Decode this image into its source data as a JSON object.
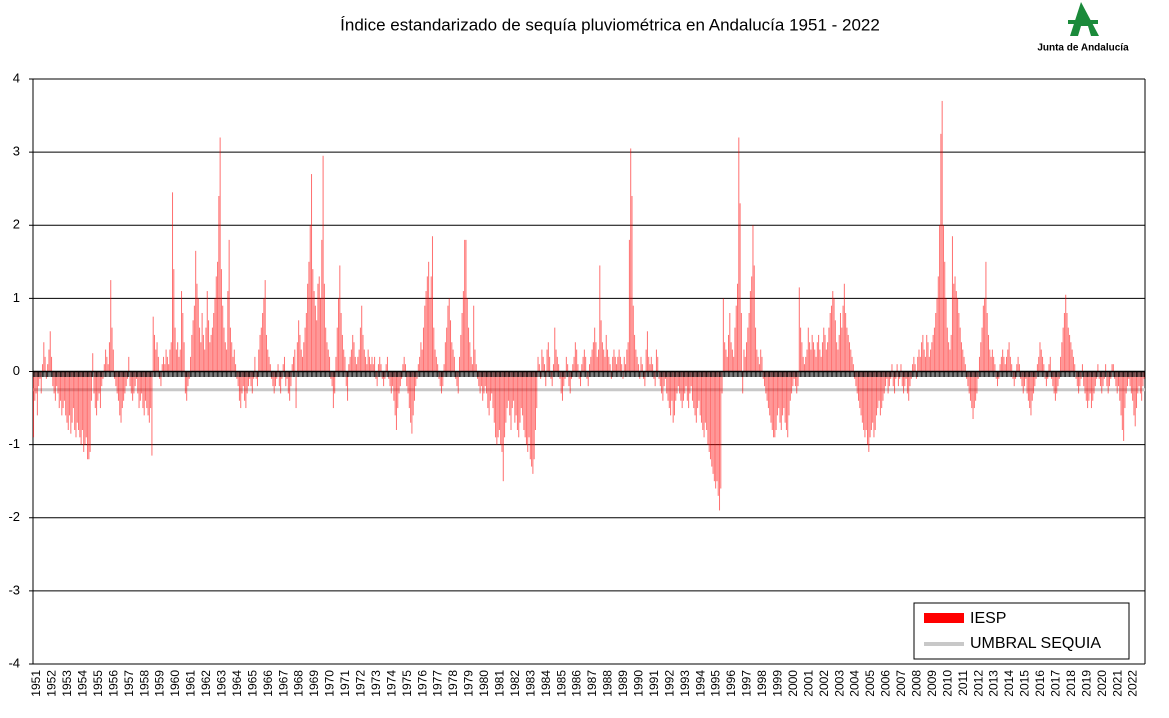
{
  "chart_data": {
    "type": "bar",
    "title": "Índice estandarizado de sequía pluviométrica en Andalucía 1951 - 2022",
    "logo_text": "Junta de Andalucía",
    "categories": [
      "1951",
      "1952",
      "1953",
      "1954",
      "1955",
      "1956",
      "1957",
      "1958",
      "1959",
      "1960",
      "1961",
      "1962",
      "1963",
      "1964",
      "1965",
      "1966",
      "1967",
      "1968",
      "1969",
      "1970",
      "1971",
      "1972",
      "1973",
      "1974",
      "1975",
      "1976",
      "1977",
      "1978",
      "1979",
      "1980",
      "1981",
      "1982",
      "1983",
      "1984",
      "1985",
      "1986",
      "1987",
      "1988",
      "1989",
      "1990",
      "1991",
      "1992",
      "1993",
      "1994",
      "1995",
      "1996",
      "1997",
      "1998",
      "1999",
      "2000",
      "2001",
      "2002",
      "2003",
      "2004",
      "2005",
      "2006",
      "2007",
      "2008",
      "2009",
      "2010",
      "2011",
      "2012",
      "2013",
      "2014",
      "2015",
      "2016",
      "2017",
      "2018",
      "2019",
      "2020",
      "2021",
      "2022"
    ],
    "series": [
      {
        "name": "IESP",
        "color": "#ff0000",
        "values": [
          [
            -0.9,
            -0.4,
            -0.3,
            -0.6,
            -0.2,
            -0.1,
            -0.3,
            0.1,
            0.4,
            0.2,
            -0.1,
            0.1
          ],
          [
            0.3,
            0.55,
            0.2,
            -0.2,
            -0.3,
            -0.4,
            -0.2,
            -0.3,
            -0.5,
            -0.4,
            -0.6,
            -0.5
          ],
          [
            -0.4,
            -0.6,
            -0.7,
            -0.8,
            -0.6,
            -0.85,
            -0.7,
            -0.5,
            -0.8,
            -0.9,
            -0.7,
            -0.8
          ],
          [
            -0.9,
            -1.0,
            -0.8,
            -1.1,
            -1.0,
            -0.9,
            -1.2,
            -1.2,
            -1.1,
            -0.4,
            0.25,
            -0.3
          ],
          [
            -0.5,
            -0.6,
            -0.4,
            -0.3,
            -0.5,
            -0.2,
            -0.1,
            0.1,
            0.3,
            0.2,
            0.1,
            0.4
          ],
          [
            1.25,
            0.6,
            0.3,
            -0.1,
            -0.2,
            -0.3,
            -0.4,
            -0.6,
            -0.7,
            -0.5,
            -0.4,
            -0.3
          ],
          [
            -0.2,
            -0.1,
            0.2,
            -0.2,
            -0.3,
            -0.4,
            -0.3,
            -0.2,
            -0.1,
            -0.3,
            -0.5,
            -0.4
          ],
          [
            -0.3,
            -0.5,
            -0.6,
            -0.4,
            -0.5,
            -0.6,
            -0.7,
            -0.5,
            -1.15,
            0.75,
            0.5,
            0.3
          ],
          [
            0.4,
            0.2,
            -0.1,
            -0.2,
            0.1,
            0.2,
            0.1,
            0.3,
            0.2,
            0.1,
            0.3,
            0.4
          ],
          [
            2.45,
            1.4,
            0.6,
            0.3,
            0.4,
            0.2,
            0.3,
            1.1,
            0.8,
            0.4,
            -0.3,
            -0.4
          ],
          [
            -0.2,
            -0.1,
            0.2,
            0.5,
            0.7,
            0.9,
            1.65,
            1.2,
            1.0,
            0.6,
            0.4,
            0.8
          ],
          [
            0.5,
            0.3,
            0.6,
            1.1,
            0.7,
            0.4,
            0.5,
            0.6,
            0.8,
            1.0,
            1.3,
            1.5
          ],
          [
            2.4,
            3.2,
            1.4,
            0.9,
            0.6,
            0.4,
            0.3,
            1.1,
            1.8,
            0.6,
            0.4,
            0.2
          ],
          [
            0.3,
            0.1,
            -0.1,
            -0.2,
            -0.4,
            -0.5,
            -0.3,
            -0.2,
            -0.4,
            -0.5,
            -0.3,
            -0.2
          ],
          [
            -0.1,
            -0.2,
            -0.3,
            -0.1,
            0.2,
            -0.1,
            -0.2,
            0.3,
            0.5,
            0.6,
            0.8,
            1.0
          ],
          [
            1.25,
            0.5,
            0.3,
            0.2,
            0.1,
            -0.1,
            -0.2,
            -0.3,
            -0.2,
            -0.1,
            0.1,
            -0.2
          ],
          [
            -0.3,
            -0.1,
            0.1,
            0.2,
            -0.2,
            -0.1,
            -0.3,
            -0.4,
            -0.2,
            0.1,
            0.2,
            0.3
          ],
          [
            -0.5,
            0.4,
            0.7,
            0.5,
            0.3,
            0.2,
            0.4,
            0.6,
            0.8,
            1.2,
            1.5,
            2.0
          ],
          [
            2.7,
            1.4,
            1.1,
            0.9,
            0.7,
            1.2,
            1.3,
            1.0,
            1.8,
            2.95,
            1.2,
            0.6
          ],
          [
            0.4,
            0.3,
            0.2,
            -0.1,
            -0.2,
            -0.5,
            -0.3,
            0.2,
            0.6,
            1.0,
            1.45,
            0.8
          ],
          [
            0.5,
            0.3,
            0.2,
            -0.2,
            -0.4,
            0.1,
            0.2,
            0.3,
            0.5,
            0.4,
            0.2,
            0.1
          ],
          [
            0.2,
            0.3,
            0.6,
            0.9,
            0.5,
            0.3,
            0.2,
            0.1,
            0.3,
            0.2,
            0.1,
            0.2
          ],
          [
            0.1,
            0.2,
            -0.1,
            -0.2,
            0.1,
            0.2,
            0.1,
            -0.1,
            -0.2,
            -0.1,
            0.1,
            0.2
          ],
          [
            -0.1,
            -0.2,
            -0.3,
            -0.2,
            -0.4,
            -0.6,
            -0.8,
            -0.5,
            -0.3,
            -0.2,
            -0.1,
            0.1
          ],
          [
            0.2,
            0.1,
            -0.2,
            -0.3,
            -0.5,
            -0.7,
            -0.85,
            -0.6,
            -0.4,
            -0.2,
            -0.1,
            0.1
          ],
          [
            0.2,
            0.4,
            0.3,
            0.6,
            0.9,
            1.1,
            1.3,
            1.5,
            1.0,
            1.3,
            1.85,
            0.6
          ],
          [
            0.3,
            0.2,
            0.1,
            -0.1,
            -0.2,
            -0.3,
            -0.2,
            0.1,
            0.4,
            0.6,
            0.9,
            1.0
          ],
          [
            0.7,
            0.4,
            0.3,
            0.2,
            -0.1,
            -0.2,
            -0.3,
            0.2,
            0.5,
            0.8,
            1.1,
            1.8
          ],
          [
            1.8,
            1.0,
            0.6,
            0.4,
            0.2,
            0.1,
            0.9,
            0.3,
            0.1,
            -0.1,
            -0.2,
            -0.3
          ],
          [
            -0.2,
            -0.4,
            -0.3,
            -0.2,
            -0.3,
            -0.5,
            -0.6,
            -0.4,
            -0.3,
            -0.5,
            -0.7,
            -0.9
          ],
          [
            -1.0,
            -0.9,
            -0.8,
            -1.0,
            -1.1,
            -1.5,
            -0.9,
            -0.7,
            -0.5,
            -0.4,
            -0.6,
            -0.8
          ],
          [
            -0.5,
            -0.4,
            -0.7,
            -0.6,
            -0.8,
            -0.9,
            -0.7,
            -0.5,
            -0.6,
            -0.8,
            -0.9,
            -1.0
          ],
          [
            -1.1,
            -0.9,
            -1.2,
            -1.3,
            -1.4,
            -1.2,
            -0.8,
            -0.5,
            0.2,
            0.1,
            -0.1,
            0.3
          ],
          [
            0.2,
            0.1,
            -0.2,
            0.3,
            0.4,
            0.2,
            -0.1,
            -0.2,
            0.1,
            0.6,
            0.3,
            0.2
          ],
          [
            0.1,
            -0.1,
            -0.3,
            -0.4,
            -0.2,
            -0.1,
            0.2,
            0.1,
            -0.2,
            -0.3,
            -0.1,
            0.1
          ],
          [
            0.2,
            0.4,
            0.3,
            0.1,
            -0.1,
            -0.2,
            0.1,
            0.2,
            0.3,
            0.2,
            -0.1,
            -0.2
          ],
          [
            0.1,
            0.2,
            0.3,
            0.4,
            0.6,
            0.4,
            0.2,
            0.3,
            1.45,
            0.7,
            0.4,
            0.3
          ],
          [
            0.2,
            0.5,
            0.3,
            0.2,
            0.1,
            -0.1,
            0.2,
            0.3,
            0.2,
            0.1,
            0.2,
            0.3
          ],
          [
            0.2,
            0.1,
            -0.1,
            0.2,
            0.1,
            0.3,
            0.4,
            1.8,
            3.05,
            2.4,
            0.9,
            0.5
          ],
          [
            0.3,
            0.2,
            0.1,
            -0.1,
            0.2,
            0.1,
            -0.1,
            -0.2,
            0.3,
            0.55,
            0.2,
            0.1
          ],
          [
            0.2,
            0.1,
            -0.1,
            -0.2,
            0.3,
            0.2,
            -0.1,
            -0.2,
            -0.3,
            -0.4,
            -0.2,
            -0.1
          ],
          [
            -0.3,
            -0.4,
            -0.5,
            -0.6,
            -0.4,
            -0.7,
            -0.6,
            -0.4,
            -0.3,
            -0.2,
            -0.3,
            -0.4
          ],
          [
            -0.5,
            -0.4,
            -0.3,
            -0.2,
            -0.4,
            -0.5,
            -0.3,
            -0.2,
            -0.4,
            -0.5,
            -0.6,
            -0.7
          ],
          [
            -0.5,
            -0.4,
            -0.6,
            -0.7,
            -0.8,
            -0.9,
            -0.7,
            -0.8,
            -1.0,
            -1.1,
            -1.2,
            -1.3
          ],
          [
            -1.4,
            -1.5,
            -1.6,
            -1.5,
            -1.7,
            -1.9,
            -1.6,
            -0.3,
            1.0,
            0.4,
            0.3,
            0.2
          ],
          [
            0.5,
            0.8,
            0.4,
            0.3,
            0.2,
            0.6,
            0.9,
            1.2,
            3.2,
            2.3,
            0.8,
            -0.3
          ],
          [
            0.3,
            0.2,
            0.4,
            0.6,
            0.8,
            1.1,
            1.3,
            2.0,
            1.45,
            0.6,
            0.3,
            0.2
          ],
          [
            0.1,
            0.3,
            0.2,
            -0.1,
            -0.2,
            -0.3,
            -0.4,
            -0.5,
            -0.6,
            -0.7,
            -0.8,
            -0.9
          ],
          [
            -0.9,
            -0.8,
            -0.6,
            -0.5,
            -0.7,
            -0.8,
            -0.6,
            -0.5,
            -0.7,
            -0.8,
            -0.9,
            -0.6
          ],
          [
            -0.4,
            -0.3,
            -0.2,
            -0.1,
            -0.2,
            -0.3,
            -0.2,
            1.15,
            0.6,
            0.4,
            0.2,
            0.1
          ],
          [
            0.2,
            0.3,
            0.6,
            0.4,
            0.3,
            0.5,
            0.4,
            0.3,
            0.2,
            0.4,
            0.5,
            0.3
          ],
          [
            0.2,
            0.4,
            0.6,
            0.5,
            0.3,
            0.4,
            0.6,
            0.8,
            0.9,
            1.1,
            1.0,
            0.7
          ],
          [
            0.4,
            0.3,
            0.5,
            0.8,
            0.6,
            0.9,
            1.2,
            0.8,
            0.6,
            0.5,
            0.4,
            0.3
          ],
          [
            0.2,
            0.1,
            -0.1,
            -0.2,
            -0.3,
            -0.4,
            -0.5,
            -0.6,
            -0.7,
            -0.8,
            -0.9,
            -0.8
          ],
          [
            -1.0,
            -1.1,
            -0.9,
            -0.8,
            -0.7,
            -0.9,
            -0.8,
            -0.6,
            -0.5,
            -0.4,
            -0.6,
            -0.5
          ],
          [
            -0.4,
            -0.3,
            -0.2,
            -0.1,
            -0.3,
            -0.2,
            -0.1,
            0.1,
            -0.2,
            -0.3,
            -0.1,
            0.1
          ],
          [
            -0.2,
            -0.1,
            0.1,
            -0.2,
            -0.3,
            -0.2,
            -0.1,
            -0.3,
            -0.4,
            -0.2,
            -0.1,
            0.1
          ],
          [
            0.2,
            0.1,
            -0.1,
            0.2,
            0.3,
            0.2,
            0.4,
            0.5,
            0.3,
            0.2,
            0.5,
            0.4
          ],
          [
            0.2,
            0.3,
            0.4,
            0.5,
            0.6,
            0.8,
            1.0,
            1.3,
            2.0,
            3.25,
            3.7,
            2.0
          ],
          [
            1.5,
            1.0,
            0.6,
            0.4,
            0.3,
            0.5,
            1.85,
            1.2,
            1.3,
            1.1,
            1.0,
            0.8
          ],
          [
            0.6,
            0.4,
            0.3,
            0.2,
            0.1,
            -0.1,
            -0.2,
            -0.3,
            -0.4,
            -0.5,
            -0.65,
            -0.5
          ],
          [
            -0.4,
            -0.3,
            -0.1,
            0.2,
            0.4,
            0.6,
            0.9,
            1.0,
            1.5,
            0.8,
            0.5,
            0.3
          ],
          [
            0.2,
            0.3,
            0.2,
            0.1,
            -0.1,
            -0.2,
            -0.1,
            0.1,
            0.2,
            0.3,
            0.2,
            0.1
          ],
          [
            0.2,
            0.3,
            0.4,
            0.2,
            0.1,
            -0.1,
            -0.2,
            -0.1,
            0.1,
            0.2,
            0.1,
            -0.1
          ],
          [
            -0.2,
            -0.3,
            -0.2,
            -0.1,
            -0.3,
            -0.4,
            -0.5,
            -0.6,
            -0.4,
            -0.3,
            -0.2,
            -0.1
          ],
          [
            0.1,
            0.2,
            0.4,
            0.3,
            0.2,
            0.1,
            -0.1,
            -0.2,
            -0.1,
            0.1,
            0.2,
            -0.1
          ],
          [
            -0.2,
            -0.3,
            -0.4,
            -0.3,
            -0.2,
            -0.1,
            0.2,
            0.4,
            0.6,
            0.8,
            1.05,
            0.8
          ],
          [
            0.6,
            0.5,
            0.4,
            0.3,
            0.2,
            0.1,
            -0.1,
            -0.2,
            -0.3,
            -0.2,
            -0.1,
            0.1
          ],
          [
            -0.2,
            -0.3,
            -0.4,
            -0.5,
            -0.4,
            -0.3,
            -0.5,
            -0.4,
            -0.3,
            -0.2,
            -0.1,
            0.1
          ],
          [
            -0.1,
            -0.2,
            -0.3,
            -0.2,
            -0.1,
            0.1,
            -0.2,
            -0.3,
            -0.2,
            -0.1,
            0.1,
            0.1
          ],
          [
            -0.1,
            -0.2,
            -0.3,
            -0.2,
            -0.4,
            -0.6,
            -0.8,
            -0.95,
            -0.5,
            -0.3,
            -0.2,
            -0.1
          ],
          [
            -0.2,
            -0.3,
            -0.4,
            -0.6,
            -0.75,
            -0.5,
            -0.3,
            -0.2,
            -0.3,
            -0.4,
            -0.2,
            -0.1
          ]
        ]
      }
    ],
    "threshold": {
      "name": "UMBRAL SEQUIA",
      "value": -0.25,
      "color": "#c8c8c8"
    },
    "ylim": [
      -4,
      4
    ],
    "yticks": [
      -4,
      -3,
      -2,
      -1,
      0,
      1,
      2,
      3,
      4
    ],
    "grid": true,
    "legend": "lower right"
  }
}
